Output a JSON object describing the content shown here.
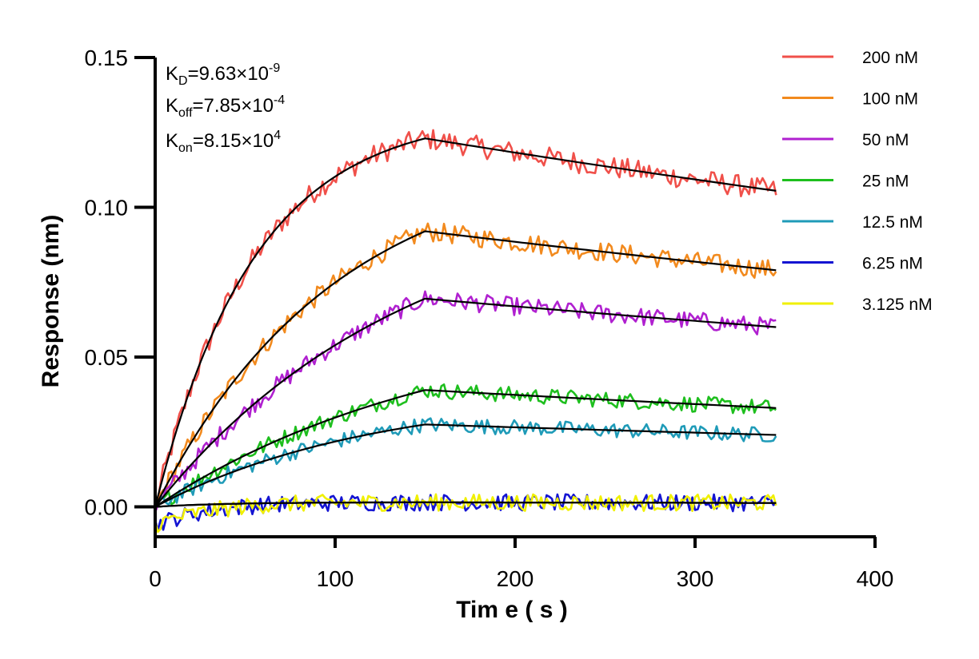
{
  "chart_data": {
    "type": "line",
    "title": "",
    "xlabel": "Tim e ( s )",
    "ylabel": "Response (nm)",
    "xlim": [
      0,
      400
    ],
    "ylim": [
      -0.01,
      0.15
    ],
    "xticks": [
      "0",
      "100",
      "200",
      "300",
      "400"
    ],
    "yticks": [
      "0.00",
      "0.05",
      "0.10",
      "0.15"
    ],
    "grid": false,
    "legend_position": "top-right",
    "kinetics": {
      "kd": {
        "base": "K",
        "sub": "D",
        "value": "=9.63×10",
        "exp": "-9"
      },
      "koff": {
        "base": "K",
        "sub": "off",
        "value": "=7.85×10",
        "exp": "-4"
      },
      "kon": {
        "base": "K",
        "sub": "on",
        "value": "=8.15×10",
        "exp": "4"
      }
    },
    "association_end_s": 150,
    "end_s": 345,
    "series": [
      {
        "name": "200 nM",
        "color": "#f0504a",
        "peak": 0.123,
        "end": 0.1055,
        "tau": 55
      },
      {
        "name": "100 nM",
        "color": "#f28a1e",
        "peak": 0.092,
        "end": 0.079,
        "tau": 100
      },
      {
        "name": "50 nM",
        "color": "#b020d0",
        "peak": 0.0695,
        "end": 0.06,
        "tau": 140
      },
      {
        "name": "25 nM",
        "color": "#1ebf1e",
        "peak": 0.039,
        "end": 0.033,
        "tau": 160
      },
      {
        "name": "12.5 nM",
        "color": "#1f9bb8",
        "peak": 0.0275,
        "end": 0.024,
        "tau": 120
      },
      {
        "name": "6.25 nM",
        "color": "#1414d2",
        "peak": 0.0015,
        "end": 0.0013,
        "tau": 40
      },
      {
        "name": "3.125 nM",
        "color": "#f0f000",
        "peak": 0.0015,
        "end": 0.0013,
        "tau": 40
      }
    ],
    "fit_color": "#000000"
  }
}
